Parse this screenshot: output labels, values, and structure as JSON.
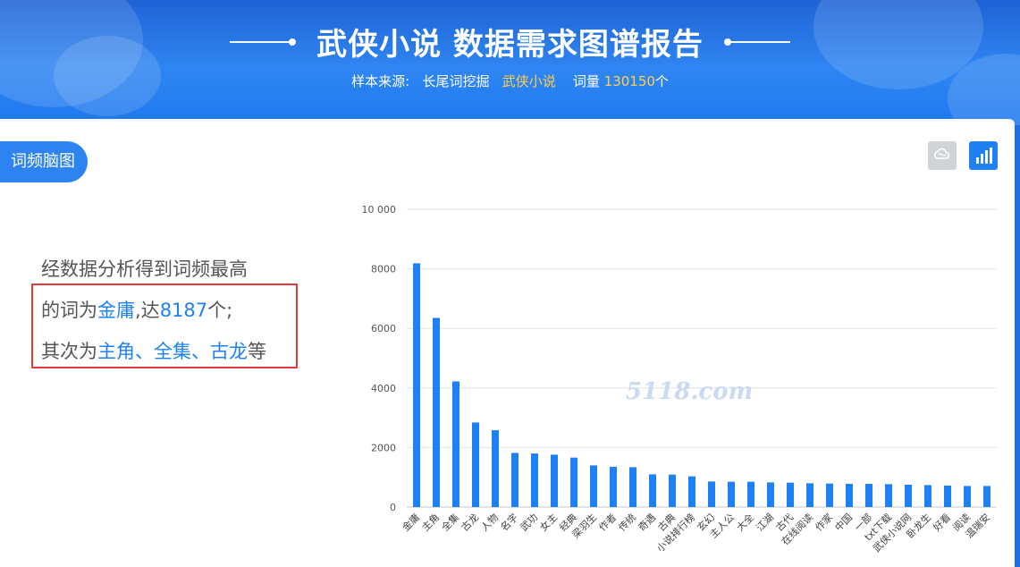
{
  "header": {
    "title": "武侠小说 数据需求图谱报告",
    "source_prefix": "样本来源:",
    "source_name": "长尾词挖掘",
    "keyword": "武侠小说",
    "count_label": "词量",
    "count_value": "130150",
    "count_unit": "个"
  },
  "panel": {
    "tab_label": "词频脑图",
    "tools": [
      "cloud-icon",
      "bar-chart-icon"
    ]
  },
  "summary": {
    "line1": "经数据分析得到词频最高",
    "line2_prefix": "的词为",
    "top_word": "金庸",
    "line2_mid": ",达",
    "top_count": "8187",
    "line2_suffix": "个;",
    "line3_prefix": "其次为",
    "next_words": "主角、全集、古龙",
    "line3_suffix": "等"
  },
  "watermark": "5118.com",
  "colors": {
    "accent": "#1e80f2",
    "highlight": "#ffd04a",
    "box": "#e03a3a"
  },
  "chart_data": {
    "type": "bar",
    "categories": [
      "金庸",
      "主角",
      "全集",
      "古龙",
      "人物",
      "名字",
      "武功",
      "女主",
      "经典",
      "梁羽生",
      "作者",
      "传统",
      "奇遇",
      "古典",
      "小说排行榜",
      "玄幻",
      "主人公",
      "大全",
      "江湖",
      "古代",
      "在线阅读",
      "作家",
      "中国",
      "一部",
      "txt下载",
      "武侠小说网",
      "卧龙生",
      "好看",
      "阅读",
      "温瑞安"
    ],
    "values": [
      8187,
      6350,
      4220,
      2840,
      2580,
      1820,
      1800,
      1760,
      1660,
      1400,
      1350,
      1340,
      1100,
      1090,
      1030,
      860,
      850,
      850,
      830,
      820,
      800,
      790,
      780,
      780,
      770,
      750,
      740,
      720,
      710,
      710
    ],
    "yticks": [
      "0",
      "2000",
      "4000",
      "6000",
      "8000",
      "10 000"
    ],
    "ylim": [
      0,
      10000
    ],
    "grid": true
  }
}
